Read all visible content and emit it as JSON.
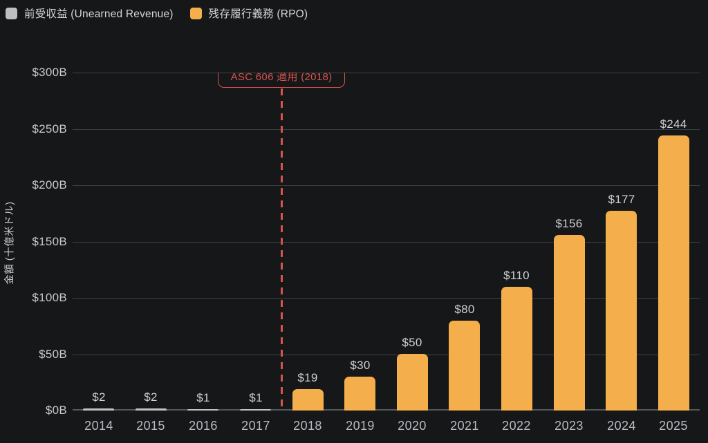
{
  "legend": {
    "items": [
      {
        "label": "前受収益 (Unearned Revenue)",
        "color": "#bfbfbf"
      },
      {
        "label": "残存履行義務 (RPO)",
        "color": "#f4ae4c"
      }
    ]
  },
  "annotation": {
    "label": "ASC 606 適用 (2018)",
    "color": "#d9534e",
    "position": "between 2017 and 2018"
  },
  "chart_data": {
    "type": "bar",
    "title": "",
    "xlabel": "",
    "ylabel": "金額 (十億米ドル)",
    "categories": [
      "2014",
      "2015",
      "2016",
      "2017",
      "2018",
      "2019",
      "2020",
      "2021",
      "2022",
      "2023",
      "2024",
      "2025"
    ],
    "series": [
      {
        "name": "前受収益 (Unearned Revenue)",
        "color": "#c3c3c3",
        "values": [
          2,
          2,
          1,
          1,
          null,
          null,
          null,
          null,
          null,
          null,
          null,
          null
        ]
      },
      {
        "name": "残存履行義務 (RPO)",
        "color": "#f4ae4c",
        "values": [
          null,
          null,
          null,
          null,
          19,
          30,
          50,
          80,
          110,
          156,
          177,
          244
        ]
      }
    ],
    "bar_labels": [
      "$2",
      "$2",
      "$1",
      "$1",
      "$19",
      "$30",
      "$50",
      "$80",
      "$110",
      "$156",
      "$177",
      "$244"
    ],
    "yticks": [
      {
        "value": 0,
        "label": "$0B"
      },
      {
        "value": 50,
        "label": "$50B"
      },
      {
        "value": 100,
        "label": "$100B"
      },
      {
        "value": 150,
        "label": "$150B"
      },
      {
        "value": 200,
        "label": "$200B"
      },
      {
        "value": 250,
        "label": "$250B"
      },
      {
        "value": 300,
        "label": "$300B"
      }
    ],
    "ylim": [
      0,
      300
    ],
    "grid": true,
    "legend_position": "top-left",
    "reference_line_between": [
      "2017",
      "2018"
    ],
    "background": "#161718",
    "gridline_color": "#3d4144"
  }
}
